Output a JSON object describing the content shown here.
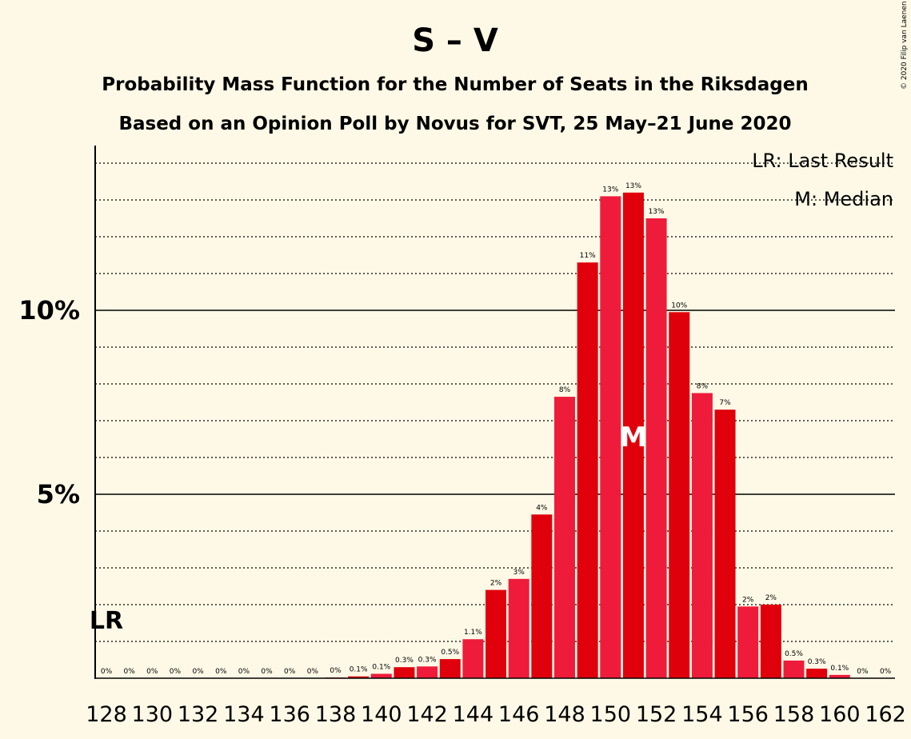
{
  "title": "S – V",
  "subtitle1": "Probability Mass Function for the Number of Seats in the Riksdagen",
  "subtitle2": "Based on an Opinion Poll by Novus for SVT, 25 May–21 June 2020",
  "copyright": "© 2020 Filip van Laenen",
  "legend": {
    "last_result": "LR: Last Result",
    "median": "M: Median"
  },
  "chart_data": {
    "type": "bar",
    "seats": [
      128,
      129,
      130,
      131,
      132,
      133,
      134,
      135,
      136,
      137,
      138,
      139,
      140,
      141,
      142,
      143,
      144,
      145,
      146,
      147,
      148,
      149,
      150,
      151,
      152,
      153,
      154,
      155,
      156,
      157,
      158,
      159,
      160,
      161,
      162
    ],
    "values": [
      0,
      0,
      0,
      0,
      0,
      0,
      0,
      0,
      0,
      0,
      0.02,
      0.05,
      0.12,
      0.3,
      0.32,
      0.52,
      1.06,
      2.4,
      2.7,
      4.45,
      7.65,
      11.3,
      13.1,
      13.2,
      12.5,
      9.95,
      7.75,
      7.3,
      1.95,
      2.0,
      0.48,
      0.26,
      0.09,
      0,
      0
    ],
    "labels": [
      "0%",
      "0%",
      "0%",
      "0%",
      "0%",
      "0%",
      "0%",
      "0%",
      "0%",
      "0%",
      "0%",
      "0.1%",
      "0.1%",
      "0.3%",
      "0.3%",
      "0.5%",
      "1.1%",
      "2%",
      "3%",
      "4%",
      "8%",
      "11%",
      "13%",
      "13%",
      "13%",
      "10%",
      "8%",
      "7%",
      "2%",
      "2%",
      "0.5%",
      "0.3%",
      "0.1%",
      "0%",
      "0%"
    ],
    "x_tick_labels": [
      "128",
      "130",
      "132",
      "134",
      "136",
      "138",
      "140",
      "142",
      "144",
      "146",
      "148",
      "150",
      "152",
      "154",
      "156",
      "158",
      "160",
      "162"
    ],
    "y_tick_labels": [
      "5%",
      "10%"
    ],
    "y_ticks": [
      5,
      10
    ],
    "ylim": [
      0,
      14.5
    ],
    "last_result_seat": 128,
    "last_result_label": "LR",
    "median_seat": 151,
    "median_label": "M",
    "colors": {
      "bar_primary": "#e0000b",
      "bar_alternate": "#ee1c3a",
      "background": "#fdf9e6"
    }
  }
}
